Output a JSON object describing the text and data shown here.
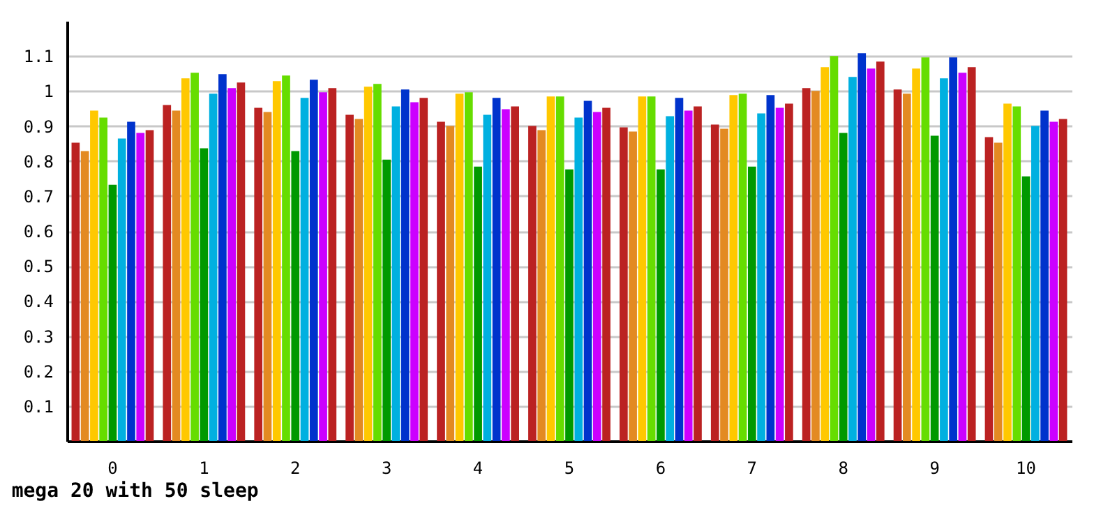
{
  "chart_data": {
    "type": "bar",
    "title": "mega 20 with 50 sleep",
    "categories": [
      "0",
      "1",
      "2",
      "3",
      "4",
      "5",
      "6",
      "7",
      "8",
      "9",
      "10"
    ],
    "series": [
      {
        "color": "#bb2222",
        "values": [
          0.852,
          0.96,
          0.952,
          0.932,
          0.912,
          0.9,
          0.896,
          0.904,
          1.008,
          1.004,
          0.868
        ]
      },
      {
        "color": "#e38a22",
        "values": [
          0.828,
          0.944,
          0.94,
          0.92,
          0.9,
          0.888,
          0.884,
          0.892,
          1.0,
          0.992,
          0.852
        ]
      },
      {
        "color": "#ffc800",
        "values": [
          0.944,
          1.036,
          1.028,
          1.012,
          0.992,
          0.984,
          0.984,
          0.988,
          1.068,
          1.064,
          0.964
        ]
      },
      {
        "color": "#66dd00",
        "values": [
          0.924,
          1.052,
          1.044,
          1.02,
          0.996,
          0.984,
          0.984,
          0.992,
          1.1,
          1.096,
          0.956
        ]
      },
      {
        "color": "#009900",
        "values": [
          0.732,
          0.836,
          0.828,
          0.804,
          0.784,
          0.776,
          0.776,
          0.784,
          0.88,
          0.872,
          0.756
        ]
      },
      {
        "color": "#00b0e0",
        "values": [
          0.864,
          0.992,
          0.98,
          0.956,
          0.932,
          0.924,
          0.928,
          0.936,
          1.04,
          1.036,
          0.9
        ]
      },
      {
        "color": "#0033cc",
        "values": [
          0.912,
          1.048,
          1.032,
          1.004,
          0.98,
          0.972,
          0.98,
          0.988,
          1.108,
          1.096,
          0.944
        ]
      },
      {
        "color": "#cc00ff",
        "values": [
          0.88,
          1.008,
          0.996,
          0.968,
          0.948,
          0.94,
          0.944,
          0.952,
          1.064,
          1.052,
          0.912
        ]
      },
      {
        "color": "#bb2222",
        "values": [
          0.888,
          1.024,
          1.008,
          0.98,
          0.956,
          0.952,
          0.956,
          0.964,
          1.084,
          1.068,
          0.92
        ]
      }
    ],
    "ylim": [
      0,
      1.2
    ],
    "yticks": [
      0.1,
      0.2,
      0.3,
      0.4,
      0.5,
      0.6,
      0.7,
      0.8,
      0.9,
      1,
      1.1
    ],
    "grid": "y"
  }
}
